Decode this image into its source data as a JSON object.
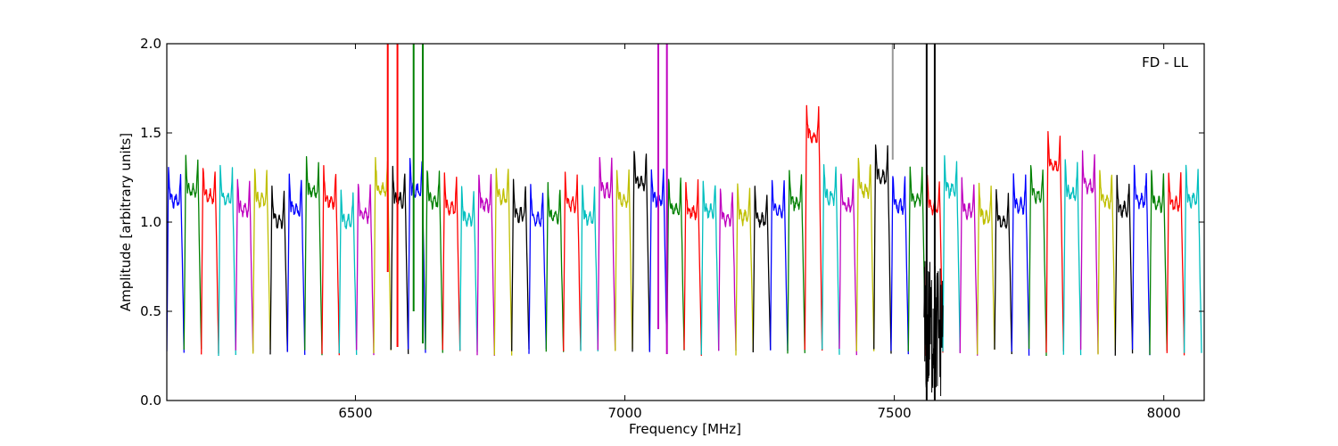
{
  "chart_data": {
    "type": "line",
    "title": "",
    "xlabel": "Frequency [MHz]",
    "ylabel": "Amplitude [arbitrary units]",
    "annotation": "FD - LL",
    "xlim": [
      6150,
      8075
    ],
    "ylim": [
      0.0,
      2.0
    ],
    "xticks": [
      6500,
      7000,
      7500,
      8000
    ],
    "xtick_labels": [
      "6500",
      "7000",
      "7500",
      "8000"
    ],
    "yticks": [
      0.0,
      0.5,
      1.0,
      1.5,
      2.0
    ],
    "ytick_labels": [
      "0.0",
      "0.5",
      "1.0",
      "1.5",
      "2.0"
    ],
    "grid": false,
    "color_cycle": [
      "#0000ff",
      "#008000",
      "#ff0000",
      "#00bfbf",
      "#bf00bf",
      "#bfbf00",
      "#000000"
    ],
    "channel_width_mhz": 32,
    "channel_start_mhz": 6150,
    "channel_count": 60,
    "channel_edge_level": 0.27,
    "channel_peak_levels": [
      1.3,
      1.36,
      1.32,
      1.31,
      1.25,
      1.3,
      1.19,
      1.25,
      1.35,
      1.3,
      1.18,
      1.22,
      1.36,
      1.3,
      1.35,
      1.3,
      1.26,
      1.2,
      1.28,
      1.32,
      1.22,
      1.2,
      1.21,
      1.28,
      1.2,
      1.36,
      1.3,
      1.4,
      1.31,
      1.25,
      1.24,
      1.24,
      1.2,
      1.21,
      1.19,
      1.24,
      1.29,
      1.66,
      1.32,
      1.27,
      1.36,
      1.43,
      1.27,
      1.31,
      1.26,
      1.36,
      1.24,
      1.21,
      1.18,
      1.27,
      1.33,
      1.49,
      1.34,
      1.38,
      1.3,
      1.25,
      1.3,
      1.28,
      1.28,
      1.3
    ],
    "rfi_spikes": [
      {
        "frequency": 6560,
        "color": "#ff0000",
        "min": 0.72
      },
      {
        "frequency": 6578,
        "color": "#ff0000",
        "min": 0.3
      },
      {
        "frequency": 6608,
        "color": "#008000",
        "min": 0.5
      },
      {
        "frequency": 6625,
        "color": "#008000",
        "min": 0.32
      },
      {
        "frequency": 7062,
        "color": "#bf00bf",
        "min": 0.4
      },
      {
        "frequency": 7078,
        "color": "#bf00bf",
        "min": 0.26
      },
      {
        "frequency": 7497,
        "color": "#999999",
        "min": 1.35
      },
      {
        "frequency": 7560,
        "color": "#000000",
        "min": 0.0
      },
      {
        "frequency": 7575,
        "color": "#000000",
        "min": 0.0
      }
    ],
    "noise_band": {
      "from": 7555,
      "to": 7590,
      "color": "#000000",
      "min": 0.0,
      "max": 0.8
    }
  }
}
